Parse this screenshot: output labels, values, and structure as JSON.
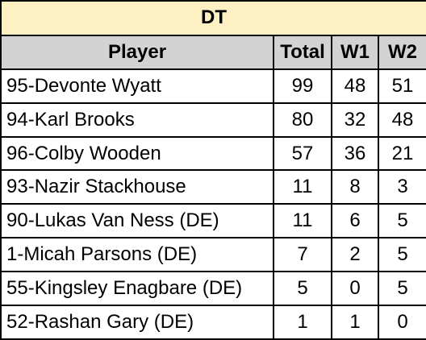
{
  "table": {
    "title": "DT",
    "headers": {
      "player": "Player",
      "total": "Total",
      "w1": "W1",
      "w2": "W2"
    },
    "rows": [
      {
        "player": "95-Devonte Wyatt",
        "total": "99",
        "w1": "48",
        "w2": "51"
      },
      {
        "player": "94-Karl Brooks",
        "total": "80",
        "w1": "32",
        "w2": "48"
      },
      {
        "player": "96-Colby Wooden",
        "total": "57",
        "w1": "36",
        "w2": "21"
      },
      {
        "player": "93-Nazir Stackhouse",
        "total": "11",
        "w1": "8",
        "w2": "3"
      },
      {
        "player": "90-Lukas Van Ness (DE)",
        "total": "11",
        "w1": "6",
        "w2": "5"
      },
      {
        "player": "1-Micah Parsons (DE)",
        "total": "7",
        "w1": "2",
        "w2": "5"
      },
      {
        "player": "55-Kingsley Enagbare (DE)",
        "total": "5",
        "w1": "0",
        "w2": "5"
      },
      {
        "player": "52-Rashan Gary (DE)",
        "total": "1",
        "w1": "1",
        "w2": "0"
      }
    ],
    "colors": {
      "title_bg": "#fdf1c4",
      "header_bg": "#d3d3d3",
      "border": "#000000"
    }
  }
}
